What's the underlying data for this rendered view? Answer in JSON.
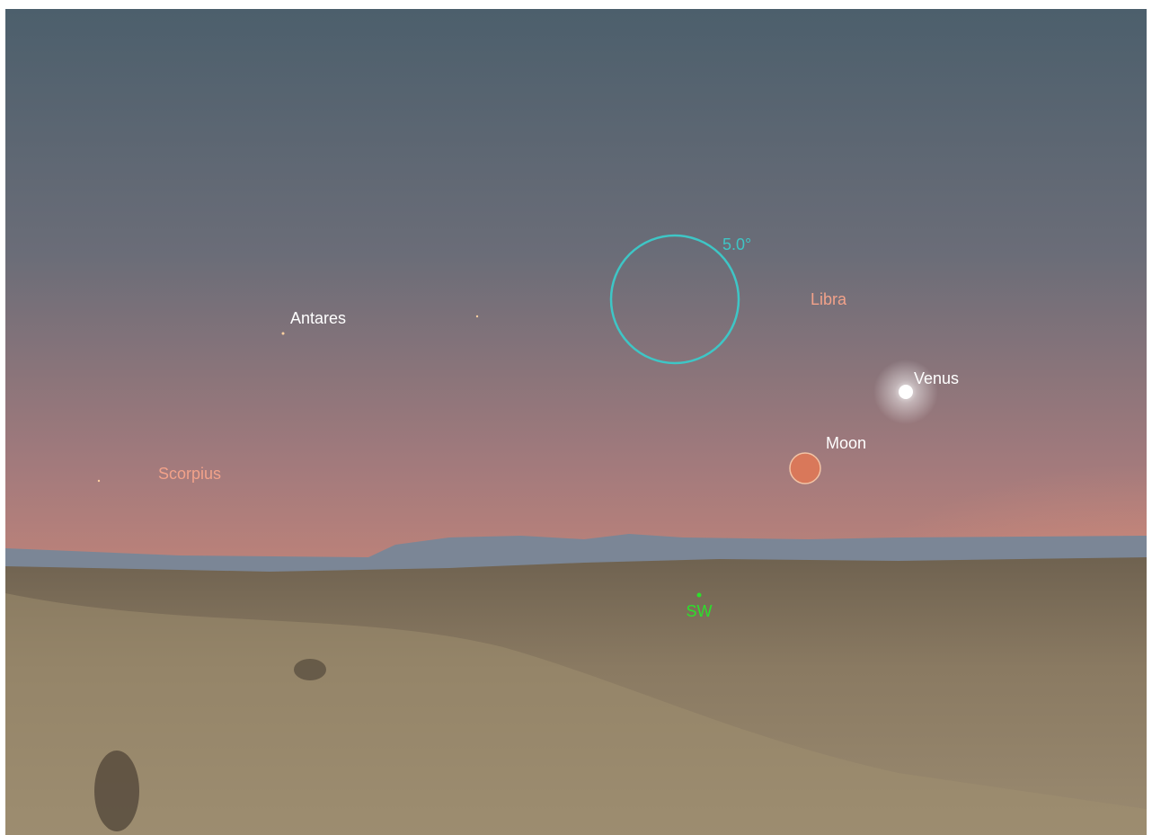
{
  "fov_indicator": {
    "label": "5.0°"
  },
  "constellations": [
    {
      "label": "Libra"
    },
    {
      "label": "Scorpius"
    }
  ],
  "objects": [
    {
      "label": "Antares"
    },
    {
      "label": "Venus"
    },
    {
      "label": "Moon"
    }
  ],
  "compass": {
    "label": "SW"
  }
}
